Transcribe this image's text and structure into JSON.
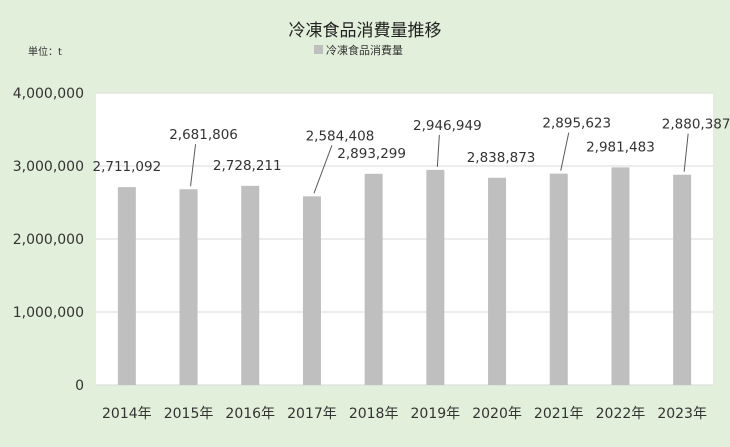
{
  "chart_data": {
    "type": "bar",
    "title": "冷凍食品消費量推移",
    "unit_label": "単位：t",
    "legend_label": "冷凍食品消費量",
    "legend_position": "top",
    "categories": [
      "2014年",
      "2015年",
      "2016年",
      "2017年",
      "2018年",
      "2019年",
      "2020年",
      "2021年",
      "2022年",
      "2023年"
    ],
    "values": [
      2711092,
      2681806,
      2728211,
      2584408,
      2893299,
      2946949,
      2838873,
      2895623,
      2981483,
      2880387
    ],
    "data_labels": [
      "2,711,092",
      "2,681,806",
      "2,728,211",
      "2,584,408",
      "2,893,299",
      "2,946,949",
      "2,838,873",
      "2,895,623",
      "2,981,483",
      "2,880,387"
    ],
    "y_ticks": [
      "0",
      "1,000,000",
      "2,000,000",
      "3,000,000",
      "4,000,000"
    ],
    "ylim": [
      0,
      4000000
    ],
    "grid": true,
    "colors": {
      "bar": "#bfbfbf",
      "plot_bg": "#ffffff",
      "figure_bg": "#e2efda",
      "grid": "#d9d9d9"
    }
  }
}
